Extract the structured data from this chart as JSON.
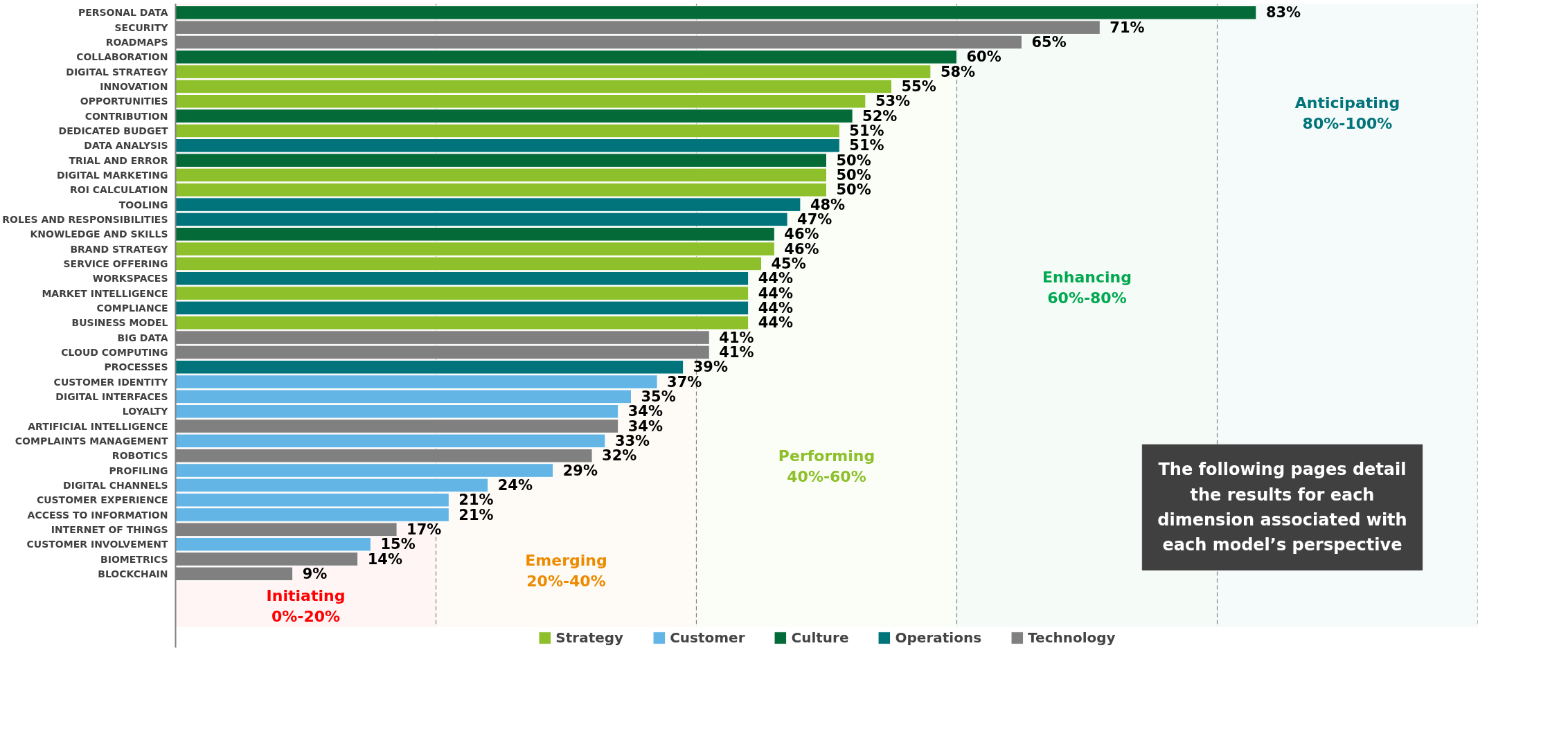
{
  "chart_data": {
    "type": "bar",
    "orientation": "horizontal",
    "categories": [
      "PERSONAL DATA",
      "SECURITY",
      "ROADMAPS",
      "COLLABORATION",
      "DIGITAL STRATEGY",
      "INNOVATION",
      "OPPORTUNITIES",
      "CONTRIBUTION",
      "DEDICATED BUDGET",
      "DATA ANALYSIS",
      "TRIAL AND ERROR",
      "DIGITAL MARKETING",
      "ROI CALCULATION",
      "TOOLING",
      "ROLES AND RESPONSIBILITIES",
      "KNOWLEDGE AND SKILLS",
      "BRAND STRATEGY",
      "SERVICE OFFERING",
      "WORKSPACES",
      "MARKET INTELLIGENCE",
      "COMPLIANCE",
      "BUSINESS MODEL",
      "BIG DATA",
      "CLOUD COMPUTING",
      "PROCESSES",
      "CUSTOMER IDENTITY",
      "DIGITAL INTERFACES",
      "LOYALTY",
      "ARTIFICIAL INTELLIGENCE",
      "COMPLAINTS MANAGEMENT",
      "ROBOTICS",
      "PROFILING",
      "DIGITAL CHANNELS",
      "CUSTOMER EXPERIENCE",
      "ACCESS TO INFORMATION",
      "INTERNET OF THINGS",
      "CUSTOMER INVOLVEMENT",
      "BIOMETRICS",
      "BLOCKCHAIN"
    ],
    "series": [
      {
        "name": "Strategy",
        "color": "#8dc02a",
        "values": [
          null,
          null,
          null,
          null,
          58,
          55,
          53,
          null,
          51,
          null,
          null,
          50,
          50,
          null,
          null,
          null,
          46,
          45,
          null,
          44,
          null,
          44,
          null,
          null,
          null,
          null,
          null,
          null,
          null,
          null,
          null,
          null,
          null,
          null,
          null,
          null,
          null,
          null,
          null
        ],
        "value_labels": [
          null,
          null,
          null,
          null,
          "58%",
          "55%",
          "53%",
          null,
          "51%",
          null,
          null,
          "50%",
          "50%",
          null,
          null,
          null,
          "46%",
          "45%",
          null,
          "44%",
          null,
          "44%",
          null,
          null,
          null,
          null,
          null,
          null,
          null,
          null,
          null,
          null,
          null,
          null,
          null,
          null,
          null,
          null,
          null
        ]
      },
      {
        "name": "Customer",
        "color": "#62b5e5",
        "values": [
          null,
          null,
          null,
          null,
          null,
          null,
          null,
          null,
          null,
          null,
          null,
          null,
          null,
          null,
          null,
          null,
          null,
          null,
          null,
          null,
          null,
          null,
          null,
          null,
          null,
          37,
          35,
          34,
          null,
          33,
          null,
          29,
          24,
          21,
          21,
          null,
          15,
          null,
          null
        ],
        "value_labels": [
          null,
          null,
          null,
          null,
          null,
          null,
          null,
          null,
          null,
          null,
          null,
          null,
          null,
          null,
          null,
          null,
          null,
          null,
          null,
          null,
          null,
          null,
          null,
          null,
          null,
          "37%",
          "35%",
          "34%",
          null,
          "33%",
          null,
          "29%",
          "24%",
          "21%",
          "21%",
          null,
          "15%",
          null,
          null
        ]
      },
      {
        "name": "Culture",
        "color": "#046a38",
        "values": [
          83,
          null,
          null,
          60,
          null,
          null,
          null,
          52,
          null,
          null,
          50,
          null,
          null,
          null,
          null,
          46,
          null,
          null,
          null,
          null,
          null,
          null,
          null,
          null,
          null,
          null,
          null,
          null,
          null,
          null,
          null,
          null,
          null,
          null,
          null,
          null,
          null,
          null,
          null
        ],
        "value_labels": [
          "83%",
          null,
          null,
          "60%",
          null,
          null,
          null,
          "52%",
          null,
          null,
          "50%",
          null,
          null,
          null,
          null,
          "46%",
          null,
          null,
          null,
          null,
          null,
          null,
          null,
          null,
          null,
          null,
          null,
          null,
          null,
          null,
          null,
          null,
          null,
          null,
          null,
          null,
          null,
          null,
          null
        ]
      },
      {
        "name": "Operations",
        "color": "#00747a",
        "values": [
          null,
          null,
          null,
          null,
          null,
          null,
          null,
          null,
          null,
          51,
          null,
          null,
          null,
          48,
          47,
          null,
          null,
          null,
          44,
          null,
          44,
          null,
          null,
          null,
          39,
          null,
          null,
          null,
          null,
          null,
          null,
          null,
          null,
          null,
          null,
          null,
          null,
          null,
          null
        ],
        "value_labels": [
          null,
          null,
          null,
          null,
          null,
          null,
          null,
          null,
          null,
          "51%",
          null,
          null,
          null,
          "48%",
          "47%",
          null,
          null,
          null,
          "44%",
          null,
          "44%",
          null,
          null,
          null,
          "39%",
          null,
          null,
          null,
          null,
          null,
          null,
          null,
          null,
          null,
          null,
          null,
          null,
          null,
          null
        ]
      },
      {
        "name": "Technology",
        "color": "#808080",
        "values": [
          null,
          71,
          65,
          null,
          null,
          null,
          null,
          null,
          null,
          null,
          null,
          null,
          null,
          null,
          null,
          null,
          null,
          null,
          null,
          null,
          null,
          null,
          41,
          41,
          null,
          null,
          null,
          null,
          34,
          null,
          32,
          null,
          null,
          null,
          null,
          17,
          null,
          14,
          9
        ],
        "value_labels": [
          null,
          "71%",
          "65%",
          null,
          null,
          null,
          null,
          null,
          null,
          null,
          null,
          null,
          null,
          null,
          null,
          null,
          null,
          null,
          null,
          null,
          null,
          null,
          "41%",
          "41%",
          null,
          null,
          null,
          null,
          "34%",
          null,
          "32%",
          null,
          null,
          null,
          null,
          "17%",
          null,
          "14%",
          "9%"
        ]
      }
    ],
    "xlim": [
      0,
      100
    ],
    "ref_lines": [
      {
        "axis": "x",
        "value": 20,
        "line_style": "dashed",
        "color": "#808080"
      },
      {
        "axis": "x",
        "value": 40,
        "line_style": "dashed",
        "color": "#808080"
      },
      {
        "axis": "x",
        "value": 60,
        "line_style": "dashed",
        "color": "#808080"
      },
      {
        "axis": "x",
        "value": 80,
        "line_style": "dashed",
        "color": "#808080"
      },
      {
        "axis": "x",
        "value": 100,
        "line_style": "dashed",
        "color": "#808080"
      }
    ],
    "bands": [
      {
        "axis": "x",
        "from": 0,
        "to": 20,
        "label": "Initiating\n0%-20%",
        "color": "#ff0000"
      },
      {
        "axis": "x",
        "from": 20,
        "to": 40,
        "label": "Emerging\n20%-40%",
        "color": "#ed8b00"
      },
      {
        "axis": "x",
        "from": 40,
        "to": 60,
        "label": "Performing\n40%-60%",
        "color": "#8dc02a"
      },
      {
        "axis": "x",
        "from": 60,
        "to": 80,
        "label": "Enhancing\n60%-80%",
        "color": "#00a84f"
      },
      {
        "axis": "x",
        "from": 80,
        "to": 100,
        "label": "Anticipating\n80%-100%",
        "color": "#00747a"
      }
    ],
    "annotations": [
      "The following pages detail\nthe results for each\ndimension associated with\neach model’s perspective"
    ],
    "legend": "bottom",
    "grid": false
  }
}
